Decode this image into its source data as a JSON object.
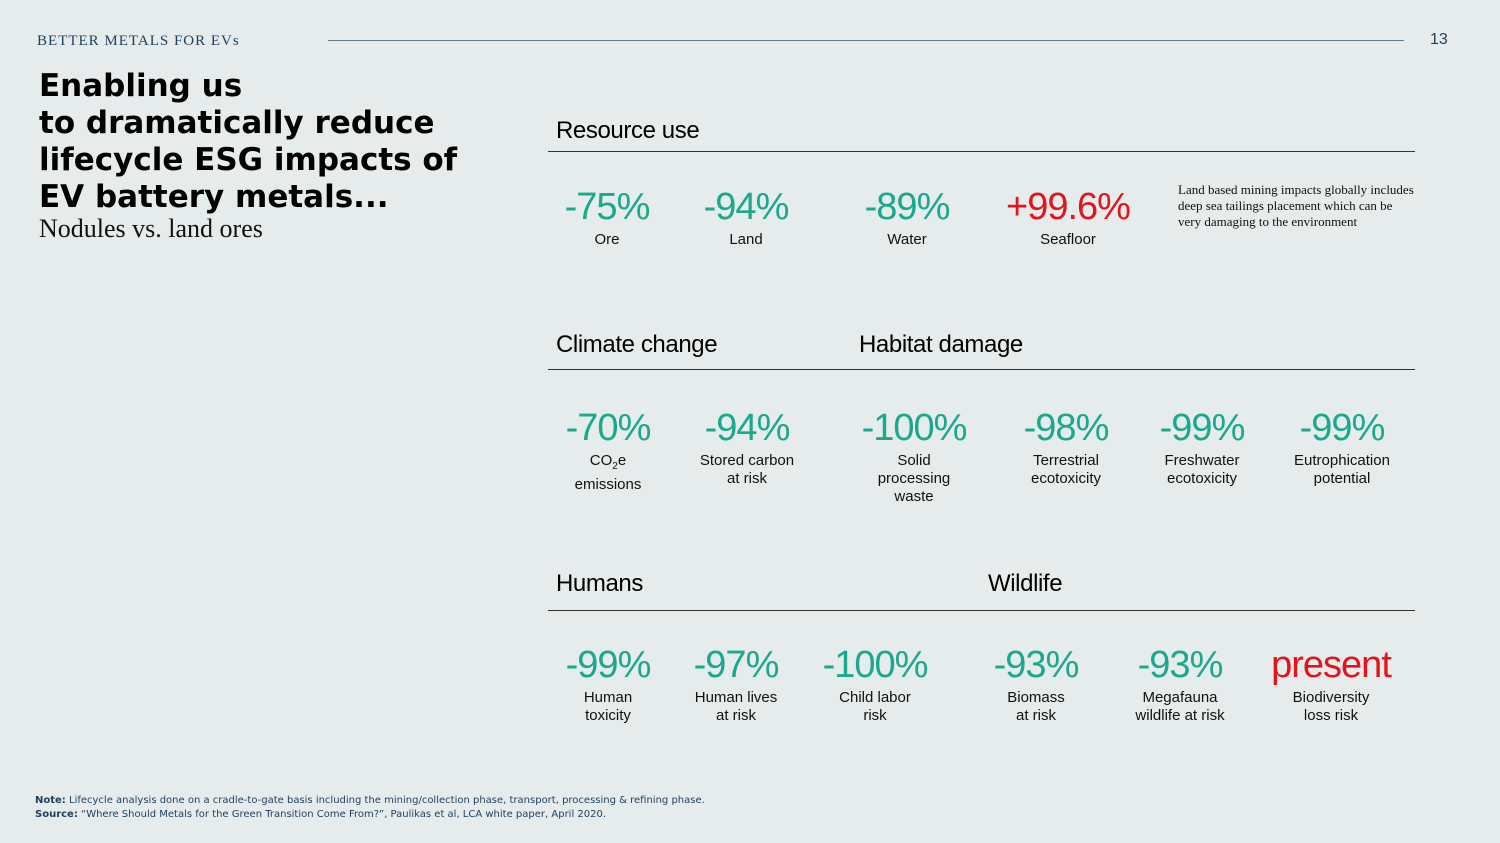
{
  "header": {
    "brand": "BETTER METALS FOR EVs",
    "page_number": "13"
  },
  "title": {
    "line1": "Enabling us",
    "line2": "to dramatically reduce",
    "line3": "lifecycle ESG impacts of",
    "line4": "EV battery metals...",
    "subtitle": "Nodules vs. land ores"
  },
  "sections": {
    "resource_use": "Resource use",
    "climate_change": "Climate change",
    "habitat_damage": "Habitat damage",
    "humans": "Humans",
    "wildlife": "Wildlife"
  },
  "resource_use": [
    {
      "value": "-75%",
      "label": "Ore"
    },
    {
      "value": "-94%",
      "label": "Land"
    },
    {
      "value": "-89%",
      "label": "Water"
    },
    {
      "value": "+99.6%",
      "label": "Seafloor"
    }
  ],
  "resource_note": "Land based mining impacts globally includes deep sea tailings placement which can be very damaging to the environment",
  "climate": [
    {
      "value": "-70%",
      "label_pre": "CO",
      "label_sub": "2",
      "label_post": "e",
      "label_line2": "emissions"
    },
    {
      "value": "-94%",
      "label_line1": "Stored carbon",
      "label_line2": "at risk"
    }
  ],
  "habitat": [
    {
      "value": "-100%",
      "label_line1": "Solid",
      "label_line2": "processing",
      "label_line3": "waste"
    },
    {
      "value": "-98%",
      "label_line1": "Terrestrial",
      "label_line2": "ecotoxicity"
    },
    {
      "value": "-99%",
      "label_line1": "Freshwater",
      "label_line2": "ecotoxicity"
    },
    {
      "value": "-99%",
      "label_line1": "Eutrophication",
      "label_line2": "potential"
    }
  ],
  "humans": [
    {
      "value": "-99%",
      "label_line1": "Human",
      "label_line2": "toxicity"
    },
    {
      "value": "-97%",
      "label_line1": "Human lives",
      "label_line2": "at risk"
    },
    {
      "value": "-100%",
      "label_line1": "Child labor",
      "label_line2": "risk"
    }
  ],
  "wildlife": [
    {
      "value": "-93%",
      "label_line1": "Biomass",
      "label_line2": "at risk"
    },
    {
      "value": "-93%",
      "label_line1": "Megafauna",
      "label_line2": "wildlife at risk"
    },
    {
      "value": "present",
      "label_line1": "Biodiversity",
      "label_line2": "loss risk"
    }
  ],
  "footnote": {
    "note_label": "Note:",
    "note_text": " Lifecycle analysis done on a cradle-to-gate basis including the mining/collection phase, transport, processing & refining phase.",
    "source_label": "Source:",
    "source_text": " “Where Should Metals for the Green Transition Come From?”, Paulikas et al, LCA white paper, April 2020."
  },
  "colors": {
    "reduction": "#1aa88e",
    "increase": "#e3141c",
    "brand_text": "#1c3f5e",
    "background": "#e6ebeb"
  }
}
